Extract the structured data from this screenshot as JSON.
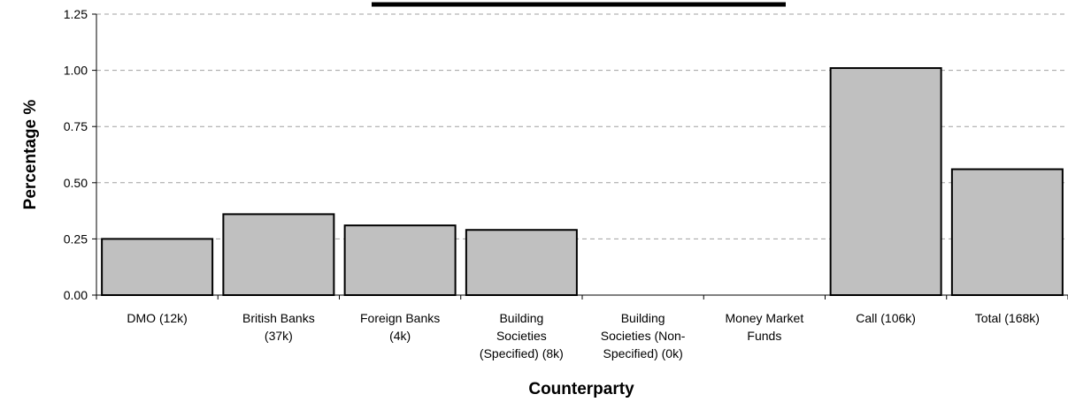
{
  "chart_data": {
    "type": "bar",
    "title": "",
    "xlabel": "Counterparty",
    "ylabel": "Percentage %",
    "ylim": [
      0,
      1.25
    ],
    "yticks": [
      "0.00",
      "0.25",
      "0.50",
      "0.75",
      "1.00",
      "1.25"
    ],
    "grid": "dashed horizontal",
    "categories": [
      [
        "DMO (12k)"
      ],
      [
        "British Banks",
        "(37k)"
      ],
      [
        "Foreign Banks",
        "(4k)"
      ],
      [
        "Building",
        "Societies",
        "(Specified) (8k)"
      ],
      [
        "Building",
        "Societies (Non-",
        "Specified) (0k)"
      ],
      [
        "Money Market",
        "Funds"
      ],
      [
        "Call (106k)"
      ],
      [
        "Total (168k)"
      ]
    ],
    "values": [
      0.25,
      0.36,
      0.31,
      0.29,
      0,
      0,
      1.01,
      0.56
    ],
    "colors": {
      "bar_fill": "#c0c0c0",
      "bar_stroke": "#000000",
      "grid": "#a0a0a0",
      "header_line": "#000000"
    }
  }
}
